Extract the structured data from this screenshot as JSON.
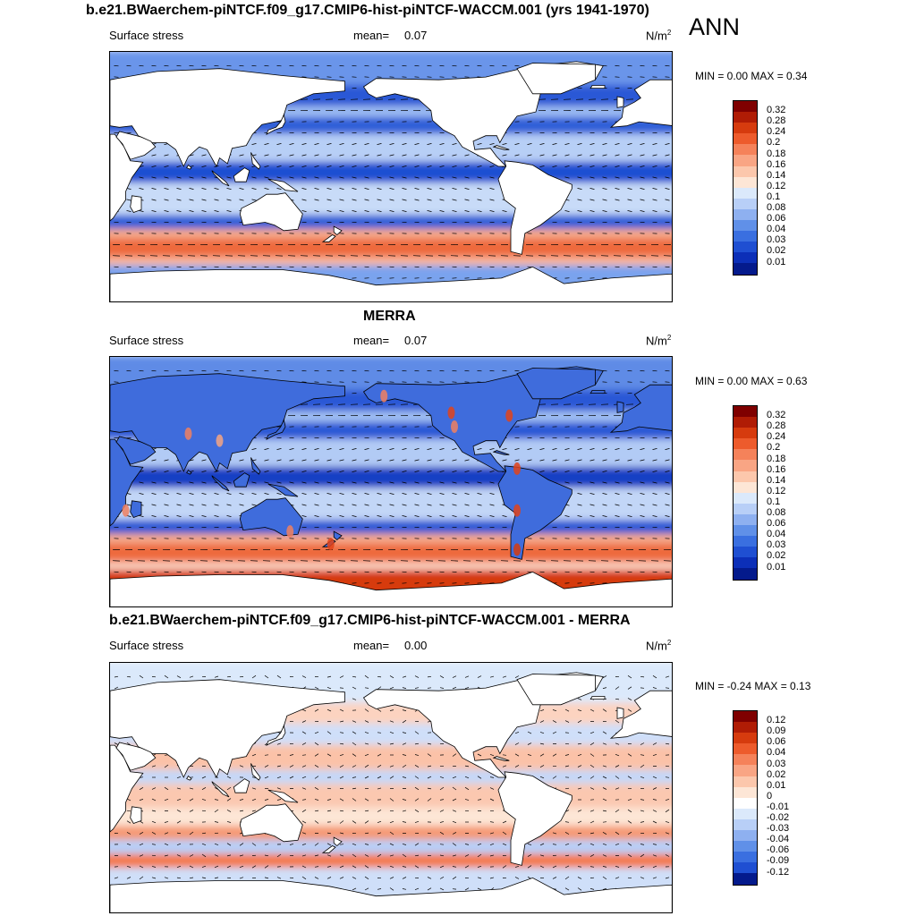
{
  "header": {
    "main_title": "b.e21.BWaerchem-piNTCF.f09_g17.CMIP6-hist-piNTCF-WACCM.001 (yrs 1941-1970)",
    "season": "ANN"
  },
  "panels": [
    {
      "id": "model",
      "variable": "Surface stress",
      "mean_label": "mean=",
      "mean_value": "0.07",
      "units": "N/m",
      "units_exp": "2",
      "minmax": "MIN =   0.00 MAX =   0.34",
      "colorbar": {
        "labels": [
          "0.32",
          "0.28",
          "0.24",
          "0.2",
          "0.18",
          "0.16",
          "0.14",
          "0.12",
          "0.1",
          "0.08",
          "0.06",
          "0.04",
          "0.03",
          "0.02",
          "0.01"
        ],
        "colors": [
          "#7f0000",
          "#b01c05",
          "#d63b0e",
          "#ed5b2c",
          "#f5825a",
          "#f9a584",
          "#fcc7ac",
          "#fde6d6",
          "#dbe9fb",
          "#b8cff7",
          "#8eb0f0",
          "#6090e8",
          "#3a6fe0",
          "#1f4fd2",
          "#0c2fb8",
          "#041a8c"
        ]
      },
      "map": {
        "kind": "model-warm",
        "bands": [
          {
            "lat_from": 90,
            "lat_to": 65,
            "color": "#6a95ea"
          },
          {
            "lat_from": 65,
            "lat_to": 50,
            "color": "#2a58d6"
          },
          {
            "lat_from": 50,
            "lat_to": 42,
            "color": "#9cbcf3"
          },
          {
            "lat_from": 42,
            "lat_to": 30,
            "color": "#2f5fd8"
          },
          {
            "lat_from": 30,
            "lat_to": 10,
            "color": "#b7cff6"
          },
          {
            "lat_from": 10,
            "lat_to": -5,
            "color": "#1f4fd2"
          },
          {
            "lat_from": -5,
            "lat_to": -28,
            "color": "#c8dbf8"
          },
          {
            "lat_from": -28,
            "lat_to": -38,
            "color": "#2f5fd8"
          },
          {
            "lat_from": -38,
            "lat_to": -45,
            "color": "#f5a98a"
          },
          {
            "lat_from": -45,
            "lat_to": -58,
            "color": "#ee6a3c"
          },
          {
            "lat_from": -58,
            "lat_to": -64,
            "color": "#f9b79b"
          },
          {
            "lat_from": -64,
            "lat_to": -90,
            "color": "#7aa3ee"
          }
        ]
      }
    },
    {
      "id": "merra",
      "panel_title": "MERRA",
      "variable": "Surface stress",
      "mean_label": "mean=",
      "mean_value": "0.07",
      "units": "N/m",
      "units_exp": "2",
      "minmax": "MIN =   0.00 MAX =   0.63",
      "colorbar": {
        "labels": [
          "0.32",
          "0.28",
          "0.24",
          "0.2",
          "0.18",
          "0.16",
          "0.14",
          "0.12",
          "0.1",
          "0.08",
          "0.06",
          "0.04",
          "0.03",
          "0.02",
          "0.01"
        ],
        "colors": [
          "#7f0000",
          "#b01c05",
          "#d63b0e",
          "#ed5b2c",
          "#f5825a",
          "#f9a584",
          "#fcc7ac",
          "#fde6d6",
          "#dbe9fb",
          "#b8cff7",
          "#8eb0f0",
          "#6090e8",
          "#3a6fe0",
          "#1f4fd2",
          "#0c2fb8",
          "#041a8c"
        ]
      },
      "map": {
        "kind": "merra",
        "bands": [
          {
            "lat_from": 90,
            "lat_to": 65,
            "color": "#5f8be6"
          },
          {
            "lat_from": 65,
            "lat_to": 50,
            "color": "#2a58d6"
          },
          {
            "lat_from": 50,
            "lat_to": 42,
            "color": "#a0bff3"
          },
          {
            "lat_from": 42,
            "lat_to": 30,
            "color": "#2a58d6"
          },
          {
            "lat_from": 30,
            "lat_to": 10,
            "color": "#b2cbf5"
          },
          {
            "lat_from": 10,
            "lat_to": -5,
            "color": "#173fc4"
          },
          {
            "lat_from": -5,
            "lat_to": -28,
            "color": "#c2d6f7"
          },
          {
            "lat_from": -28,
            "lat_to": -38,
            "color": "#2a58d6"
          },
          {
            "lat_from": -38,
            "lat_to": -45,
            "color": "#f5a98a"
          },
          {
            "lat_from": -45,
            "lat_to": -58,
            "color": "#ee6a3c"
          },
          {
            "lat_from": -58,
            "lat_to": -64,
            "color": "#fbd0bd"
          },
          {
            "lat_from": -64,
            "lat_to": -90,
            "color": "#d63b0e"
          }
        ]
      }
    },
    {
      "id": "diff",
      "panel_title": "b.e21.BWaerchem-piNTCF.f09_g17.CMIP6-hist-piNTCF-WACCM.001 - MERRA",
      "variable": "Surface stress",
      "mean_label": "mean=",
      "mean_value": "0.00",
      "units": "N/m",
      "units_exp": "2",
      "minmax": "MIN =  -0.24 MAX =   0.13",
      "colorbar": {
        "labels": [
          "0.12",
          "0.09",
          "0.06",
          "0.04",
          "0.03",
          "0.02",
          "0.01",
          "0",
          "-0.01",
          "-0.02",
          "-0.03",
          "-0.04",
          "-0.06",
          "-0.09",
          "-0.12"
        ],
        "colors": [
          "#7f0000",
          "#b01c05",
          "#d63b0e",
          "#ed5b2c",
          "#f5825a",
          "#f9a584",
          "#fcc7ac",
          "#fde6d6",
          "#ffffff",
          "#dbe9fb",
          "#b8cff7",
          "#8eb0f0",
          "#6090e8",
          "#3a6fe0",
          "#1f4fd2",
          "#041a8c"
        ]
      },
      "map": {
        "kind": "diff",
        "bands": [
          {
            "lat_from": 90,
            "lat_to": 60,
            "color": "#dbe9fb"
          },
          {
            "lat_from": 60,
            "lat_to": 45,
            "color": "#fcd3c0"
          },
          {
            "lat_from": 45,
            "lat_to": 30,
            "color": "#cfdff9"
          },
          {
            "lat_from": 30,
            "lat_to": 12,
            "color": "#fbc2a8"
          },
          {
            "lat_from": 12,
            "lat_to": 2,
            "color": "#c5d8f8"
          },
          {
            "lat_from": 2,
            "lat_to": -15,
            "color": "#fbc8b0"
          },
          {
            "lat_from": -15,
            "lat_to": -28,
            "color": "#fde6d6"
          },
          {
            "lat_from": -28,
            "lat_to": -38,
            "color": "#f59a75"
          },
          {
            "lat_from": -38,
            "lat_to": -48,
            "color": "#b8cff7"
          },
          {
            "lat_from": -48,
            "lat_to": -58,
            "color": "#f47a4d"
          },
          {
            "lat_from": -58,
            "lat_to": -90,
            "color": "#cfdff9"
          }
        ]
      }
    }
  ]
}
